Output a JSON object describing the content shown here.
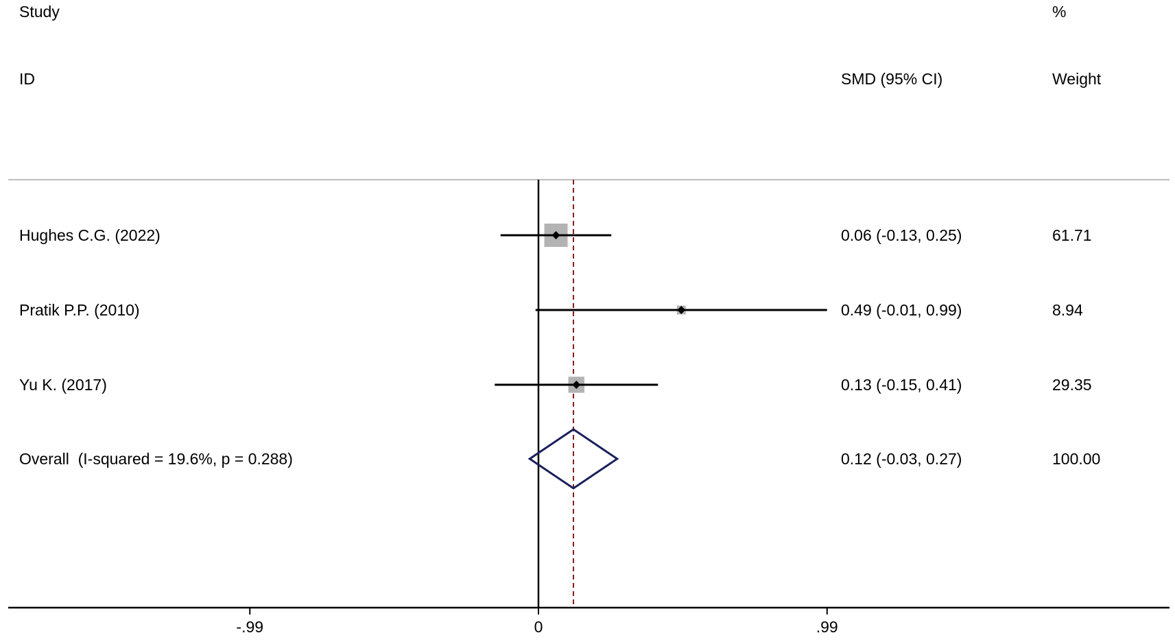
{
  "header": {
    "study": "Study",
    "id": "ID",
    "percent": "%",
    "smd": "SMD (95% CI)",
    "weight": "Weight"
  },
  "chart_data": {
    "type": "forest",
    "effect_measure": "SMD",
    "x_ticks": [
      -0.99,
      0,
      0.99
    ],
    "x_tick_labels": [
      "-.99",
      "0",
      ".99"
    ],
    "null_line": 0,
    "overall_line": 0.12,
    "studies": [
      {
        "label": "Hughes C.G. (2022)",
        "es": 0.06,
        "lo": -0.13,
        "hi": 0.25,
        "weight": 61.71,
        "ci_text": "0.06 (-0.13, 0.25)",
        "weight_text": "61.71"
      },
      {
        "label": "Pratik P.P. (2010)",
        "es": 0.49,
        "lo": -0.01,
        "hi": 0.99,
        "weight": 8.94,
        "ci_text": "0.49 (-0.01, 0.99)",
        "weight_text": "8.94"
      },
      {
        "label": "Yu K. (2017)",
        "es": 0.13,
        "lo": -0.15,
        "hi": 0.41,
        "weight": 29.35,
        "ci_text": "0.13 (-0.15, 0.41)",
        "weight_text": "29.35"
      }
    ],
    "overall": {
      "label": "Overall  (I-squared = 19.6%, p = 0.288)",
      "es": 0.12,
      "lo": -0.03,
      "hi": 0.27,
      "weight": 100.0,
      "ci_text": "0.12 (-0.03, 0.27)",
      "weight_text": "100.00"
    },
    "colors": {
      "box": "#b3b3b3",
      "diamond": "#1a1f5c",
      "overall_line": "#8b1a1a",
      "axis": "#000000",
      "separator": "#bdbdbd"
    }
  }
}
